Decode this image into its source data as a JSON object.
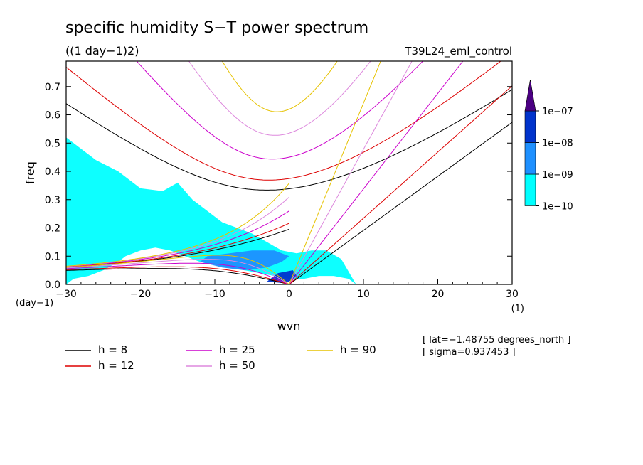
{
  "chart_data": {
    "type": "contour",
    "title": "specific humidity S−T power spectrum",
    "subtitle": "((1 day−1)2)",
    "run_label": "T39L24_eml_control",
    "xlabel": "wvn",
    "ylabel": "freq",
    "x_unit": "(1)",
    "y_unit": "(day−1)",
    "xlim": [
      -30,
      30
    ],
    "ylim": [
      0,
      0.79
    ],
    "x_ticks": [
      -30,
      -20,
      -10,
      0,
      10,
      20,
      30
    ],
    "x_tick_labels": [
      "−30",
      "−20",
      "−10",
      "0",
      "10",
      "20",
      "30"
    ],
    "y_ticks": [
      0.0,
      0.1,
      0.2,
      0.3,
      0.4,
      0.5,
      0.6,
      0.7
    ],
    "y_tick_labels": [
      "0.0",
      "0.1",
      "0.2",
      "0.3",
      "0.4",
      "0.5",
      "0.6",
      "0.7"
    ],
    "grid": false,
    "colorbar": {
      "labels": [
        "1e−10",
        "1e−09",
        "1e−08",
        "1e−07"
      ],
      "fills": [
        "#00ffff",
        "#1e90ff",
        "#0033cc",
        "#4b0082"
      ]
    },
    "contour_fill": {
      "levels": [
        1e-10,
        1e-09,
        1e-08,
        1e-07
      ],
      "colors": [
        "#00ffff",
        "#1e90ff",
        "#0033cc",
        "#4b0082"
      ],
      "regions": [
        {
          "level": 1e-10,
          "x": [
            -30,
            -29,
            -27,
            -25,
            -23,
            -22,
            -20,
            -18,
            -16,
            -14,
            -12,
            -10,
            -8,
            -6,
            -4,
            -2,
            0,
            2,
            4,
            6,
            8,
            9,
            7,
            5,
            3,
            1,
            -1,
            -3,
            -5,
            -7,
            -9,
            -11,
            -13,
            -15,
            -17,
            -20,
            -23,
            -26,
            -28,
            -30
          ],
          "y": [
            0.0,
            0.02,
            0.03,
            0.05,
            0.08,
            0.1,
            0.12,
            0.13,
            0.12,
            0.1,
            0.08,
            0.07,
            0.06,
            0.05,
            0.04,
            0.03,
            0.02,
            0.02,
            0.03,
            0.03,
            0.02,
            0.0,
            0.09,
            0.12,
            0.12,
            0.11,
            0.12,
            0.15,
            0.18,
            0.2,
            0.22,
            0.26,
            0.3,
            0.36,
            0.33,
            0.34,
            0.4,
            0.44,
            0.48,
            0.52
          ]
        },
        {
          "level": 1e-09,
          "x": [
            -12,
            -9,
            -6,
            -3,
            -1,
            0,
            -2,
            -5,
            -8,
            -11
          ],
          "y": [
            0.08,
            0.06,
            0.05,
            0.06,
            0.08,
            0.1,
            0.12,
            0.12,
            0.11,
            0.1
          ]
        },
        {
          "level": 1e-08,
          "x": [
            -3,
            -1,
            0,
            1,
            0.5,
            -1.5
          ],
          "y": [
            0.01,
            0.005,
            0.01,
            0.03,
            0.05,
            0.04
          ]
        }
      ]
    },
    "legend": {
      "position": "bottom-left",
      "entries": [
        {
          "label": "h =  8",
          "color": "#000000"
        },
        {
          "label": "h = 12",
          "color": "#dd0000"
        },
        {
          "label": "h = 25",
          "color": "#cc00cc"
        },
        {
          "label": "h = 50",
          "color": "#dd88dd"
        },
        {
          "label": "h = 90",
          "color": "#e6c200"
        }
      ]
    },
    "series": [
      {
        "name": "h =  8",
        "color": "#000000",
        "h": 8
      },
      {
        "name": "h = 12",
        "color": "#dd0000",
        "h": 12
      },
      {
        "name": "h = 25",
        "color": "#cc00cc",
        "h": 25
      },
      {
        "name": "h = 50",
        "color": "#dd88dd",
        "h": 50
      },
      {
        "name": "h = 90",
        "color": "#e6c200",
        "h": 90
      }
    ],
    "annotations": [
      "[ lat=−1.48755 degrees_north ]",
      "[ sigma=0.937453 ]"
    ]
  }
}
